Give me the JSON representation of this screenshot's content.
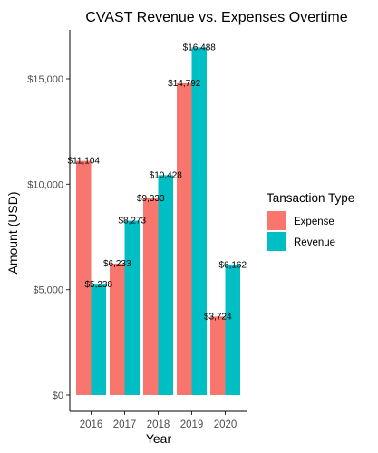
{
  "chart_data": {
    "type": "bar",
    "title": "CVAST Revenue vs. Expenses Overtime",
    "xlabel": "Year",
    "ylabel": "Amount (USD)",
    "categories": [
      "2016",
      "2017",
      "2018",
      "2019",
      "2020"
    ],
    "series": [
      {
        "name": "Expense",
        "color": "#F8766D",
        "values": [
          11104,
          6233,
          9333,
          14792,
          3724
        ],
        "labels": [
          "$11,104",
          "$6,233",
          "$9,333",
          "$14,792",
          "$3,724"
        ]
      },
      {
        "name": "Revenue",
        "color": "#00BFC4",
        "values": [
          5238,
          8273,
          10428,
          16488,
          6162
        ],
        "labels": [
          "$5,238",
          "$8,273",
          "$10,428",
          "$16,488",
          "$6,162"
        ]
      }
    ],
    "ylim": [
      0,
      17500
    ],
    "yticks": [
      0,
      5000,
      10000,
      15000
    ],
    "ytick_labels": [
      "$0",
      "$5,000",
      "$10,000",
      "$15,000"
    ],
    "legend": {
      "title": "Tansaction Type",
      "position": "right",
      "items": [
        "Expense",
        "Revenue"
      ]
    },
    "grid": false
  }
}
